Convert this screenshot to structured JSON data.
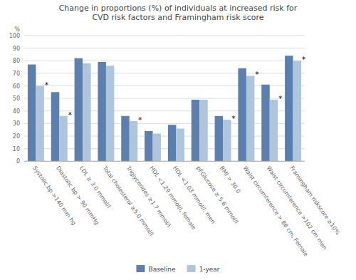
{
  "chart_data": {
    "type": "bar",
    "title": "Change in proportions (%) of individuals at increased risk for\nCVD risk factors and Framingham risk score",
    "ylabel": "%",
    "categories": [
      "Systolic bp >140 mm hg",
      "Diastolic bp > 90 mmHg",
      "LDL ≥ 3.0 mmol/l",
      "Total cholesterol ≥5.0 mmol/l",
      "Triglycerides ≥1.7 mmol/l",
      "HDL <1.29 mmol/l, female",
      "HDL <1.03 mmol/l, men",
      "pFGlucose ≥ 5.6 mmol/l",
      "BMI > 30.0",
      "Waist circumference > 88 cm,  Female",
      "Waist circumference >102 cm men",
      "Framingham riskscore ≥10%"
    ],
    "series": [
      {
        "name": "Baseline",
        "color": "#5b7fae",
        "values": [
          77,
          55,
          82,
          79,
          36,
          24,
          29,
          49,
          36,
          74,
          61,
          84
        ]
      },
      {
        "name": "1-year",
        "color": "#afc5db",
        "values": [
          60,
          36,
          78,
          76,
          32,
          22,
          26,
          49,
          33,
          68,
          49,
          80
        ]
      }
    ],
    "annotations": [
      {
        "text": "*",
        "category": "Systolic bp >140 mm hg",
        "series": "1-year"
      },
      {
        "text": "*",
        "category": "Diastolic bp > 90 mmHg",
        "series": "1-year"
      },
      {
        "text": "*",
        "category": "Triglycerides ≥1.7 mmol/l",
        "series": "1-year"
      },
      {
        "text": "*",
        "category": "BMI > 30.0",
        "series": "1-year"
      },
      {
        "text": "*",
        "category": "Waist circumference > 88 cm,  Female",
        "series": "1-year"
      },
      {
        "text": "*",
        "category": "Waist circumference >102 cm men",
        "series": "1-year"
      },
      {
        "text": "*",
        "category": "Framingham riskscore ≥10%",
        "series": "1-year"
      }
    ],
    "ylim": [
      0,
      100
    ],
    "yticks": [
      0,
      10,
      20,
      30,
      40,
      50,
      60,
      70,
      80,
      90,
      100
    ],
    "grid": true,
    "legend": "bottom"
  }
}
